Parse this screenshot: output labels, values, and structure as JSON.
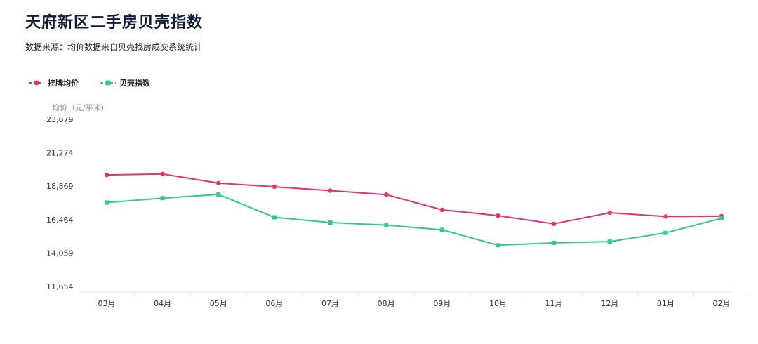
{
  "header": {
    "title": "天府新区二手房贝壳指数",
    "subtitle": "数据来源：均价数据来自贝壳找房成交系统统计"
  },
  "colors": {
    "listing": "#e5336a",
    "index": "#33c98e",
    "axis": "#e5e5e5"
  },
  "chart_data": {
    "type": "line",
    "ylabel": "均价（元/平米）",
    "categories": [
      "03月",
      "04月",
      "05月",
      "06月",
      "07月",
      "08月",
      "09月",
      "10月",
      "11月",
      "12月",
      "01月",
      "02月"
    ],
    "yticks": [
      "23,679",
      "21,274",
      "18,869",
      "16,464",
      "14,059",
      "11,654"
    ],
    "ylim": [
      11654,
      23679
    ],
    "legend_position": "top-left",
    "grid": false,
    "series": [
      {
        "name": "挂牌均价",
        "marker": "circle",
        "values": [
          19680,
          19750,
          19090,
          18830,
          18550,
          18260,
          17170,
          16750,
          16160,
          16960,
          16690,
          16710
        ]
      },
      {
        "name": "贝壳指数",
        "marker": "square",
        "values": [
          17690,
          18010,
          18270,
          16630,
          16250,
          16070,
          15730,
          14620,
          14790,
          14880,
          15510,
          16560
        ]
      }
    ]
  }
}
